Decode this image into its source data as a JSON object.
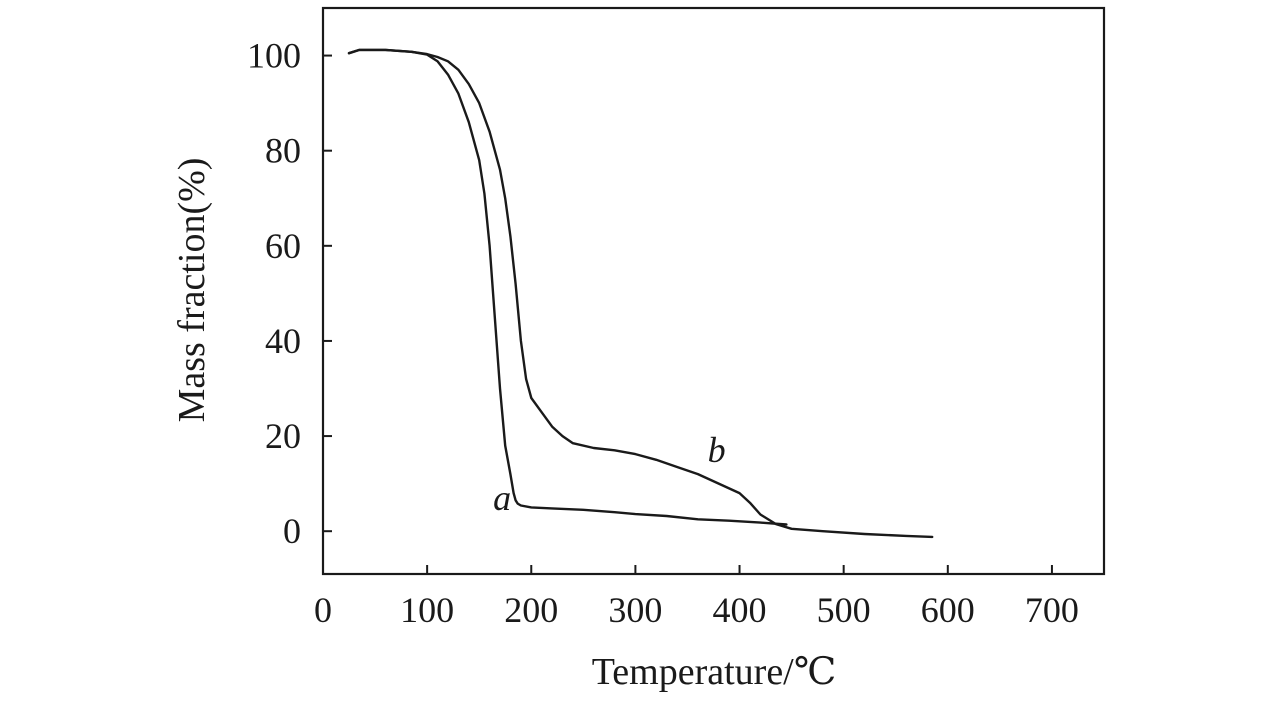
{
  "chart_data": {
    "type": "line",
    "xlabel": "Temperature/℃",
    "ylabel": "Mass fraction(%)",
    "xlim": [
      0,
      750
    ],
    "ylim": [
      -9,
      110
    ],
    "x_ticks": [
      0,
      100,
      200,
      300,
      400,
      500,
      600,
      700
    ],
    "y_ticks": [
      0,
      20,
      40,
      60,
      80,
      100
    ],
    "grid": false,
    "legend": "none",
    "series": [
      {
        "name": "a",
        "x": [
          25,
          35,
          60,
          85,
          100,
          110,
          120,
          130,
          140,
          150,
          155,
          160,
          165,
          170,
          175,
          180,
          183,
          185,
          187,
          190,
          200,
          220,
          250,
          280,
          300,
          330,
          360,
          390,
          420,
          445
        ],
        "y": [
          100.5,
          101.2,
          101.2,
          100.8,
          100.2,
          98.8,
          96,
          92,
          86,
          78,
          71,
          60,
          45,
          30,
          18,
          12,
          8,
          6.5,
          5.8,
          5.4,
          5,
          4.8,
          4.5,
          4,
          3.6,
          3.2,
          2.5,
          2.2,
          1.8,
          1.4
        ]
      },
      {
        "name": "b",
        "x": [
          25,
          35,
          60,
          85,
          100,
          110,
          120,
          130,
          140,
          150,
          160,
          170,
          175,
          180,
          185,
          190,
          195,
          200,
          210,
          220,
          230,
          240,
          260,
          280,
          300,
          320,
          340,
          360,
          380,
          400,
          410,
          420,
          435,
          450,
          480,
          520,
          560,
          585
        ],
        "y": [
          100.5,
          101.2,
          101.2,
          100.8,
          100.3,
          99.7,
          98.8,
          97,
          94,
          90,
          84,
          76,
          70,
          62,
          52,
          40,
          32,
          28,
          25,
          22,
          20,
          18.5,
          17.5,
          17,
          16.2,
          15,
          13.5,
          12,
          10,
          8,
          6,
          3.5,
          1.5,
          0.5,
          0,
          -0.6,
          -1,
          -1.2
        ]
      }
    ],
    "annotations": [
      {
        "text": "a",
        "x": 172,
        "y": 4.5
      },
      {
        "text": "b",
        "x": 378,
        "y": 14.5
      }
    ]
  }
}
